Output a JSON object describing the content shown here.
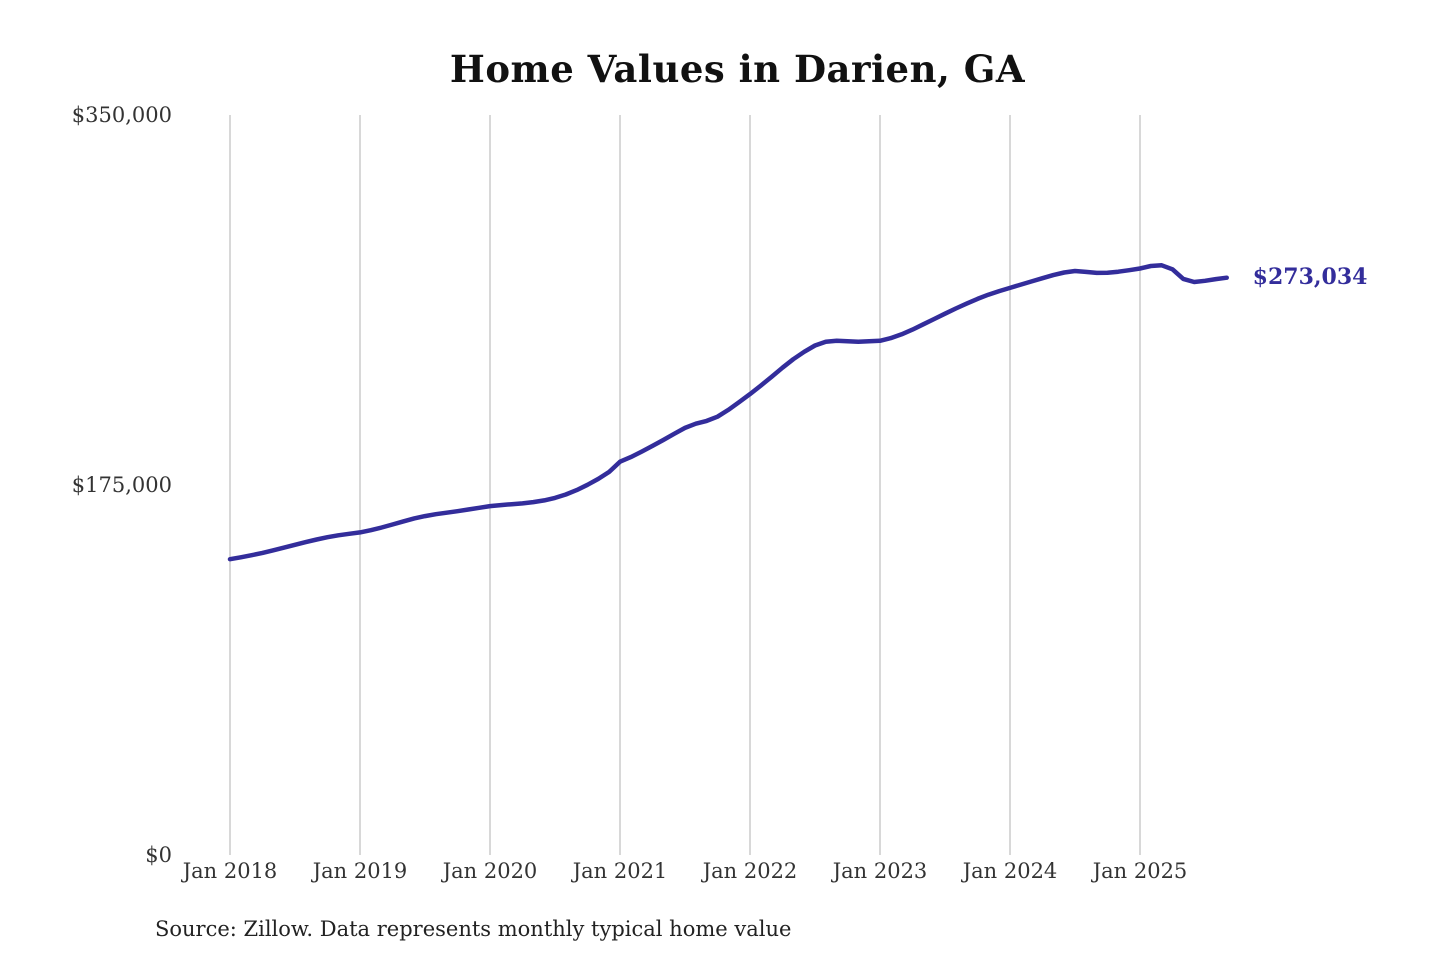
{
  "title": "Home Values in Darien, GA",
  "source_note": "Source: Zillow. Data represents monthly typical home value",
  "end_label": "$273,034",
  "colors": {
    "line": "#332d9b",
    "grid": "#cccccc",
    "axis_text": "#333333",
    "title_text": "#111111"
  },
  "chart_data": {
    "type": "line",
    "title": "Home Values in Darien, GA",
    "xlabel": "",
    "ylabel": "",
    "ylim": [
      0,
      350000
    ],
    "grid": "vertical-only",
    "legend": "none",
    "y_tick_labels": [
      "$350,000",
      "$175,000",
      "$0"
    ],
    "y_tick_values": [
      350000,
      175000,
      0
    ],
    "x_tick_labels": [
      "Jan 2018",
      "Jan 2019",
      "Jan 2020",
      "Jan 2021",
      "Jan 2022",
      "Jan 2023",
      "Jan 2024",
      "Jan 2025"
    ],
    "x_start": "Jan 2018",
    "x_end": "Sep 2025",
    "frequency": "monthly",
    "latest_value": 273034,
    "series": [
      {
        "name": "Typical home value",
        "values": [
          139900,
          140800,
          141800,
          142900,
          144100,
          145400,
          146700,
          148000,
          149200,
          150300,
          151200,
          151900,
          152600,
          153600,
          154900,
          156300,
          157800,
          159200,
          160300,
          161200,
          161900,
          162600,
          163400,
          164200,
          165000,
          165500,
          165900,
          166300,
          166900,
          167700,
          168900,
          170500,
          172600,
          175100,
          177900,
          181200,
          186000,
          188200,
          190800,
          193500,
          196300,
          199200,
          202000,
          204000,
          205300,
          207300,
          210500,
          214200,
          218000,
          222000,
          226200,
          230500,
          234500,
          238000,
          241000,
          242800,
          243200,
          243000,
          242800,
          243000,
          243200,
          244500,
          246300,
          248500,
          251000,
          253500,
          256000,
          258500,
          260800,
          263000,
          265000,
          266700,
          268200,
          269800,
          271300,
          272800,
          274300,
          275500,
          276200,
          275800,
          275300,
          275400,
          275900,
          276600,
          277400,
          278600,
          278900,
          277000,
          272500,
          271000,
          271600,
          272400,
          273034
        ]
      }
    ]
  }
}
